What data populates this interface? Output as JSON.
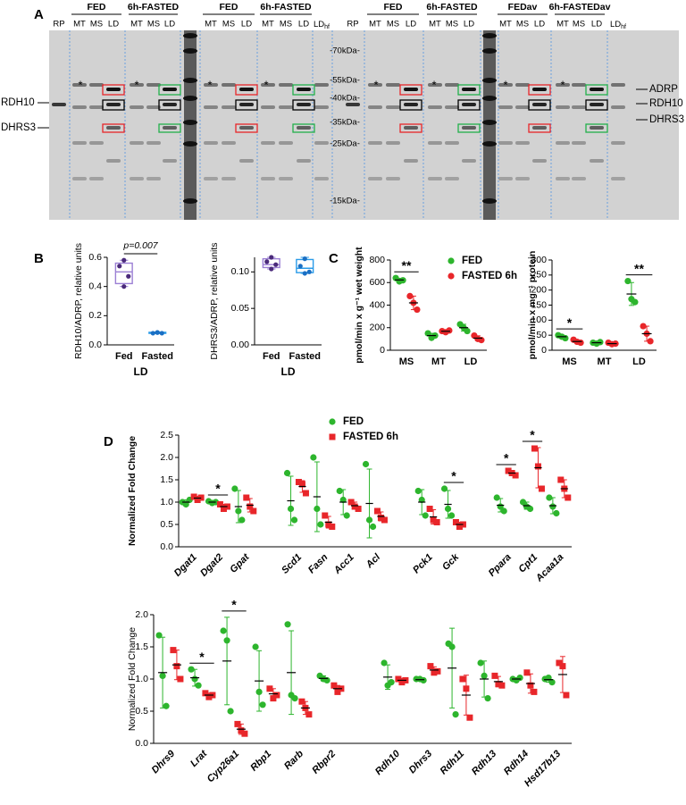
{
  "panel_labels": [
    "A",
    "B",
    "C",
    "D"
  ],
  "blot": {
    "groups": [
      "FED",
      "6h-FASTED",
      "FED",
      "6h-FASTED",
      "FED",
      "6h-FASTED",
      "FEDav",
      "6h-FASTEDav"
    ],
    "lanes": [
      "RP",
      "MT",
      "MS",
      "LD",
      "MT",
      "MS",
      "LD",
      "MT",
      "MS",
      "LD",
      "MT",
      "MS",
      "LD",
      {
        "text": "LD",
        "sub": "hf"
      },
      "RP",
      "MT",
      "MS",
      "LD",
      "MT",
      "MS",
      "LD",
      "MT",
      "MS",
      "LD",
      "MT",
      "MS",
      "LD",
      {
        "text": "LD",
        "sub": "hf"
      }
    ],
    "ladder": [
      "-70kDa-",
      "-55kDa-",
      "-40kDa-",
      "-35kDa-",
      "-25kDa-",
      "-15kDa-"
    ],
    "left_labels": [
      "RDH10",
      "DHRS3"
    ],
    "right_labels": [
      "ADRP",
      "RDH10",
      "DHRS3"
    ],
    "stars": [
      "*",
      "*",
      "*",
      "*",
      "*",
      "*",
      "*",
      "*"
    ]
  },
  "chart_data": [
    {
      "type": "box",
      "ylabel": "RDH10/ADRP, relative units",
      "xlabel": "LD",
      "categories": [
        "Fed",
        "Fasted"
      ],
      "ylim": [
        0,
        0.6
      ],
      "yticks": [
        {
          "value": 0,
          "label": "0.0"
        },
        0.2,
        0.4,
        0.6
      ],
      "colors": [
        "#9b7fd4",
        "#2a9be8"
      ],
      "point_colors": [
        "#4a2a7a",
        "#1a6fc4"
      ],
      "points": [
        [
          0.58,
          0.54,
          0.47,
          0.4
        ],
        [
          0.085,
          0.08,
          0.08,
          0.085
        ]
      ],
      "boxes": [
        {
          "min": 0.4,
          "q1": 0.42,
          "median": 0.5,
          "q3": 0.56,
          "max": 0.58
        },
        {
          "min": 0.078,
          "q1": 0.079,
          "median": 0.082,
          "q3": 0.086,
          "max": 0.088
        }
      ],
      "annotation": "p=0.007"
    },
    {
      "type": "box",
      "ylabel": "DHRS3/ADRP, relative units",
      "xlabel": "LD",
      "categories": [
        "Fed",
        "Fasted"
      ],
      "ylim": [
        0,
        0.12
      ],
      "yticks": [
        {
          "value": 0,
          "label": "0.00"
        },
        0.05,
        {
          "value": 0.1,
          "label": "0.10"
        }
      ],
      "colors": [
        "#9b7fd4",
        "#2a9be8"
      ],
      "point_colors": [
        "#4a2a7a",
        "#1a6fc4"
      ],
      "points": [
        [
          0.12,
          0.114,
          0.11,
          0.104
        ],
        [
          0.118,
          0.108,
          0.1,
          0.098
        ]
      ],
      "boxes": [
        {
          "min": 0.104,
          "q1": 0.106,
          "median": 0.11,
          "q3": 0.118,
          "max": 0.12
        },
        {
          "min": 0.098,
          "q1": 0.099,
          "median": 0.105,
          "q3": 0.117,
          "max": 0.12
        }
      ]
    },
    {
      "type": "dot",
      "ylabel": "pmol/min x g⁻¹ wet weight",
      "categories": [
        "MS",
        "MT",
        "LD"
      ],
      "ylim": [
        0,
        800
      ],
      "yticks": [
        0,
        200,
        400,
        600,
        800
      ],
      "series": [
        {
          "name": "FED",
          "color": "#2db52d",
          "marker": "circle",
          "values": [
            [
              640,
              610,
              620
            ],
            [
              150,
              110,
              130
            ],
            [
              230,
              200,
              170
            ]
          ],
          "means": [
            623,
            130,
            200
          ],
          "errors": [
            15,
            20,
            30
          ]
        },
        {
          "name": "FASTED 6h",
          "color": "#e8262a",
          "marker": "circle",
          "values": [
            [
              480,
              420,
              360
            ],
            [
              170,
              160,
              175
            ],
            [
              130,
              100,
              90
            ]
          ],
          "means": [
            420,
            168,
            107
          ],
          "errors": [
            60,
            8,
            21
          ]
        }
      ],
      "annotations": [
        {
          "text": "**",
          "category": "MS"
        }
      ]
    },
    {
      "type": "dot",
      "ylabel": "pmol/min x mg⁻¹ protein",
      "categories": [
        "MS",
        "MT",
        "LD"
      ],
      "ylim": [
        0,
        300
      ],
      "yticks": [
        0,
        50,
        100,
        150,
        200,
        250,
        300
      ],
      "series": [
        {
          "color": "#2db52d",
          "marker": "circle",
          "values": [
            [
              50,
              45,
              40
            ],
            [
              25,
              22,
              27
            ],
            [
              230,
              170,
              160
            ]
          ],
          "means": [
            45,
            25,
            187
          ],
          "errors": [
            5,
            3,
            38
          ]
        },
        {
          "color": "#e8262a",
          "marker": "circle",
          "values": [
            [
              35,
              28,
              25
            ],
            [
              25,
              20,
              22
            ],
            [
              80,
              55,
              30
            ]
          ],
          "means": [
            29,
            22,
            55
          ],
          "errors": [
            5,
            3,
            25
          ]
        }
      ],
      "annotations": [
        {
          "text": "*",
          "category": "MS"
        },
        {
          "text": "**",
          "category": "LD"
        }
      ]
    },
    {
      "type": "dot",
      "ylabel": "Normalized Fold Change",
      "categories": [
        "Dgat1",
        "Dgat2",
        "Gpat",
        null,
        "Scd1",
        "Fasn",
        "Acc1",
        "Acl",
        null,
        "Pck1",
        "Gck",
        null,
        "Ppara",
        "Cpt1",
        "Acaa1a"
      ],
      "ylim": [
        0,
        2.5
      ],
      "yticks": [
        {
          "value": 0,
          "label": "0.0"
        },
        0.5,
        {
          "value": 1,
          "label": "1.0"
        },
        1.5,
        {
          "value": 2,
          "label": "2.0"
        },
        2.5
      ],
      "series": [
        {
          "name": "FED",
          "color": "#2db52d",
          "marker": "circle",
          "values": [
            [
              1.0,
              0.95,
              1.05
            ],
            [
              1.02,
              0.98,
              1.0
            ],
            [
              1.3,
              0.8,
              0.6
            ],
            null,
            [
              1.65,
              0.85,
              0.6
            ],
            [
              2.0,
              0.85,
              0.5
            ],
            [
              1.25,
              1.05,
              0.7
            ],
            [
              1.85,
              0.6,
              0.45
            ],
            null,
            [
              1.25,
              1.05,
              0.7
            ],
            [
              1.3,
              0.85,
              0.7
            ],
            null,
            [
              1.1,
              0.9,
              0.8
            ],
            [
              1.0,
              0.9,
              0.85
            ],
            [
              1.1,
              0.9,
              0.75
            ]
          ],
          "means": [
            1.0,
            1.0,
            0.9,
            null,
            1.03,
            1.12,
            1.0,
            0.97,
            null,
            1.0,
            0.95,
            null,
            0.93,
            0.92,
            0.92
          ],
          "errors": [
            0.05,
            0.02,
            0.36,
            null,
            0.55,
            0.78,
            0.28,
            0.77,
            null,
            0.28,
            0.31,
            null,
            0.15,
            0.08,
            0.18
          ]
        },
        {
          "name": "FASTED 6h",
          "color": "#e8262a",
          "marker": "square",
          "values": [
            [
              1.12,
              1.05,
              1.1
            ],
            [
              0.95,
              0.85,
              0.9
            ],
            [
              1.1,
              0.9,
              0.8
            ],
            null,
            [
              1.45,
              1.4,
              1.2
            ],
            [
              0.7,
              0.5,
              0.45
            ],
            [
              1.0,
              0.9,
              0.85
            ],
            [
              0.8,
              0.65,
              0.6
            ],
            null,
            [
              0.85,
              0.6,
              0.55
            ],
            [
              0.55,
              0.45,
              0.5
            ],
            null,
            [
              1.7,
              1.65,
              1.6
            ],
            [
              2.2,
              1.8,
              1.3
            ],
            [
              1.5,
              1.3,
              1.1
            ]
          ],
          "means": [
            1.09,
            0.9,
            0.93,
            null,
            1.35,
            0.55,
            0.92,
            0.68,
            null,
            0.67,
            0.5,
            null,
            1.65,
            1.77,
            1.3
          ],
          "errors": [
            0.04,
            0.05,
            0.15,
            null,
            0.13,
            0.13,
            0.08,
            0.1,
            null,
            0.16,
            0.05,
            null,
            0.05,
            0.45,
            0.2
          ]
        }
      ],
      "annotations": [
        {
          "text": "*",
          "category": "Dgat2"
        },
        {
          "text": "*",
          "category": "Gck"
        },
        {
          "text": "*",
          "category": "Ppara"
        },
        {
          "text": "*",
          "category": "Cpt1"
        }
      ]
    },
    {
      "type": "dot",
      "ylabel": "Normalized Fold Change",
      "categories": [
        "Dhrs9",
        "Lrat",
        "Cyp26a1",
        "Rbp1",
        "Rarb",
        "Rbpr2",
        null,
        "Rdh10",
        "Dhrs3",
        "Rdh11",
        "Rdh13",
        "Rdh14",
        "Hsd17b13"
      ],
      "ylim": [
        0,
        2.0
      ],
      "yticks": [
        {
          "value": 0,
          "label": "0.0"
        },
        0.5,
        {
          "value": 1,
          "label": "1.0"
        },
        1.5,
        {
          "value": 2,
          "label": "2.0"
        }
      ],
      "series": [
        {
          "color": "#2db52d",
          "marker": "circle",
          "values": [
            [
              1.68,
              1.05,
              0.58
            ],
            [
              1.15,
              1.0,
              0.9
            ],
            [
              1.75,
              1.6,
              0.5
            ],
            [
              1.5,
              0.8,
              0.6
            ],
            [
              1.85,
              0.75,
              0.7
            ],
            [
              1.05,
              1.0,
              0.98
            ],
            null,
            [
              1.25,
              0.9,
              0.95
            ],
            [
              1.0,
              1.0,
              0.98
            ],
            [
              1.55,
              1.5,
              0.45
            ],
            [
              1.25,
              1.05,
              0.7
            ],
            [
              1.0,
              0.98,
              1.02
            ],
            [
              1.0,
              1.02,
              0.95
            ]
          ],
          "means": [
            1.1,
            1.02,
            1.28,
            0.97,
            1.1,
            1.01,
            null,
            1.03,
            0.99,
            1.17,
            1.0,
            1.0,
            0.99
          ],
          "errors": [
            0.55,
            0.13,
            0.68,
            0.47,
            0.65,
            0.04,
            null,
            0.19,
            0.01,
            0.62,
            0.28,
            0.02,
            0.04
          ]
        },
        {
          "color": "#e8262a",
          "marker": "square",
          "values": [
            [
              1.45,
              1.2,
              1.0
            ],
            [
              0.78,
              0.72,
              0.75
            ],
            [
              0.3,
              0.2,
              0.15
            ],
            [
              0.85,
              0.7,
              0.75
            ],
            [
              0.65,
              0.55,
              0.45
            ],
            [
              0.9,
              0.8,
              0.85
            ],
            null,
            [
              1.0,
              0.95,
              0.98
            ],
            [
              1.2,
              1.1,
              1.12
            ],
            [
              1.0,
              0.85,
              0.4
            ],
            [
              1.05,
              0.92,
              0.9
            ],
            [
              1.1,
              0.9,
              0.8
            ],
            [
              1.25,
              1.2,
              0.75
            ]
          ],
          "means": [
            1.22,
            0.75,
            0.22,
            0.77,
            0.55,
            0.85,
            null,
            0.98,
            1.14,
            0.75,
            0.96,
            0.93,
            1.07
          ],
          "errors": [
            0.23,
            0.03,
            0.08,
            0.08,
            0.1,
            0.05,
            null,
            0.03,
            0.05,
            0.31,
            0.08,
            0.15,
            0.28
          ]
        }
      ],
      "annotations": [
        {
          "text": "*",
          "category": "Lrat"
        },
        {
          "text": "*",
          "category": "Cyp26a1"
        }
      ]
    }
  ]
}
